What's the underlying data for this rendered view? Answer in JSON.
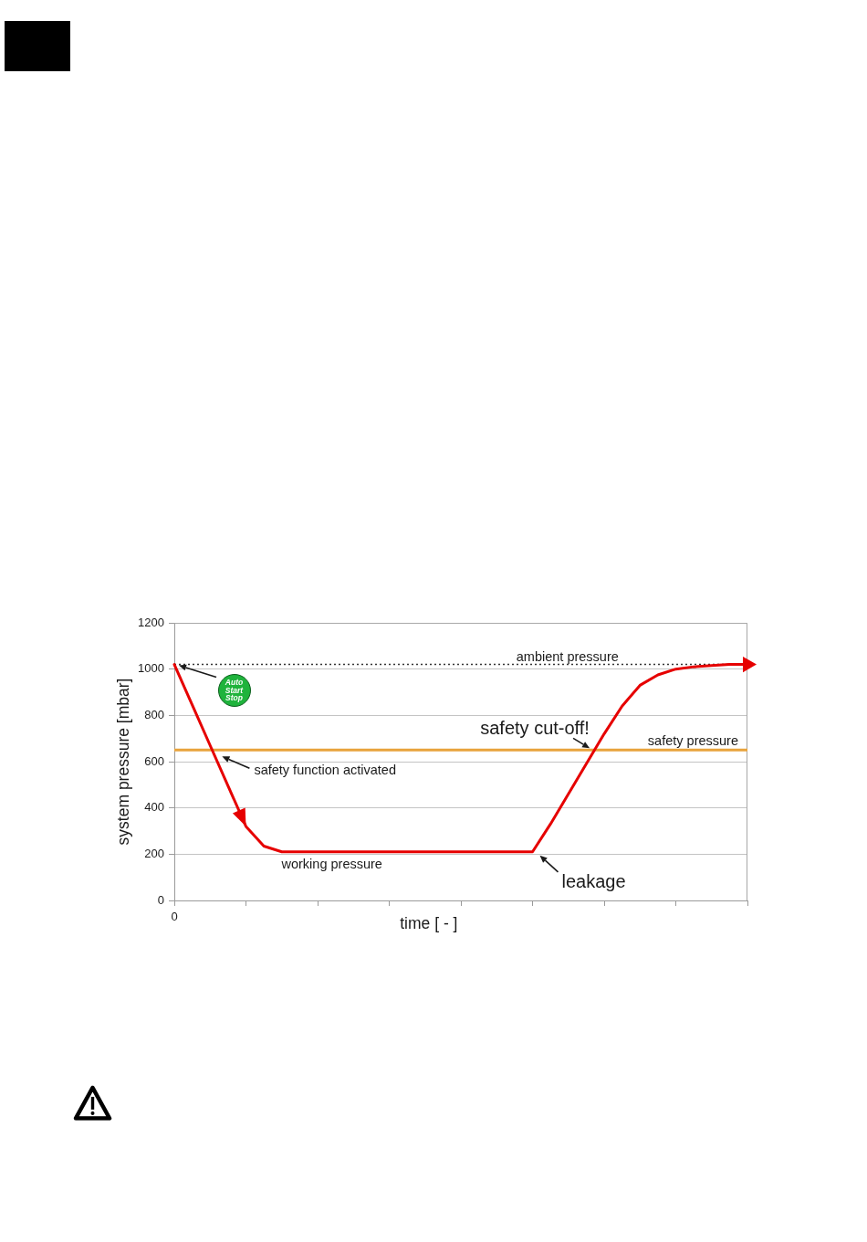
{
  "chart_data": {
    "type": "line",
    "xlabel": "time [ - ]",
    "ylabel": "system pressure [mbar]",
    "categories": [
      "0",
      null,
      null,
      null,
      null,
      null,
      null,
      null,
      null,
      null,
      null,
      null,
      null,
      null,
      null,
      null,
      null,
      null,
      null,
      null,
      null,
      null,
      null,
      null,
      null,
      null,
      null,
      null,
      null,
      null,
      null,
      null,
      null
    ],
    "values": [
      1020,
      845,
      670,
      495,
      320,
      235,
      210,
      210,
      210,
      210,
      210,
      210,
      210,
      210,
      210,
      210,
      210,
      210,
      210,
      210,
      210,
      330,
      460,
      590,
      720,
      840,
      930,
      975,
      1000,
      1010,
      1015,
      1020,
      1020
    ],
    "color": "#e60000",
    "ylim": [
      0,
      1200
    ],
    "yticks": [
      0,
      200,
      400,
      600,
      800,
      1000,
      1200
    ],
    "grid": "y",
    "marker": "none",
    "line_style": "solid",
    "ref_lines": [
      {
        "axis": "y",
        "value": 1020,
        "label": "ambient pressure",
        "color": "#333333",
        "line_style": "dotted"
      },
      {
        "axis": "y",
        "value": 650,
        "label": "safety pressure",
        "color": "#e8a33c",
        "line_style": "solid"
      }
    ],
    "annotations": [
      {
        "text": "Auto Start Stop",
        "y": 1020
      },
      {
        "text": "safety function activated",
        "y": 650
      },
      {
        "text": "working pressure",
        "y": 210
      },
      {
        "text": "safety cut-off!",
        "y": 650
      },
      "leakage"
    ]
  }
}
